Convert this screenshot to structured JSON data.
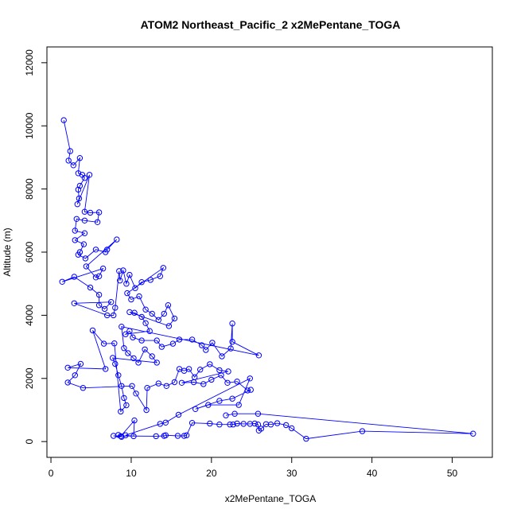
{
  "chart_data": {
    "type": "scatter",
    "title": "ATOM2 Northeast_Pacific_2 x2MePentane_TOGA",
    "xlabel": "x2MePentane_TOGA",
    "ylabel": "Altitude (m)",
    "xlim": [
      -0.5,
      55
    ],
    "ylim": [
      -500,
      12500
    ],
    "xticks": [
      0,
      10,
      20,
      30,
      40,
      50
    ],
    "yticks": [
      0,
      2000,
      4000,
      6000,
      8000,
      10000,
      12000
    ],
    "x_tick_labels": [
      "0",
      "10",
      "20",
      "30",
      "40",
      "50"
    ],
    "y_tick_labels": [
      "0",
      "2000",
      "4000",
      "6000",
      "8000",
      "10000",
      "12000"
    ],
    "grid": false,
    "legend": "none",
    "series": [
      {
        "color": "#0000ff",
        "marker": "open-circle",
        "connected": true,
        "points": [
          [
            1.6,
            10180
          ],
          [
            2.4,
            9200
          ],
          [
            2.2,
            8900
          ],
          [
            2.8,
            8750
          ],
          [
            3.6,
            8980
          ],
          [
            3.4,
            8500
          ],
          [
            3.9,
            8450
          ],
          [
            4.2,
            8350
          ],
          [
            3.6,
            8100
          ],
          [
            3.4,
            7980
          ],
          [
            3.5,
            7700
          ],
          [
            3.3,
            7520
          ],
          [
            4.8,
            8450
          ],
          [
            4.2,
            7280
          ],
          [
            4.9,
            7250
          ],
          [
            6.0,
            7260
          ],
          [
            5.8,
            6950
          ],
          [
            4.2,
            7000
          ],
          [
            3.2,
            7050
          ],
          [
            3.0,
            6680
          ],
          [
            4.2,
            6600
          ],
          [
            3.0,
            6380
          ],
          [
            4.1,
            6250
          ],
          [
            3.6,
            6000
          ],
          [
            3.4,
            5920
          ],
          [
            4.3,
            5800
          ],
          [
            5.6,
            6080
          ],
          [
            6.8,
            6000
          ],
          [
            7.0,
            6080
          ],
          [
            8.2,
            6400
          ],
          [
            4.4,
            5550
          ],
          [
            5.6,
            5200
          ],
          [
            6.0,
            5240
          ],
          [
            6.5,
            5480
          ],
          [
            1.4,
            5060
          ],
          [
            2.9,
            5220
          ],
          [
            4.9,
            4880
          ],
          [
            6.0,
            4650
          ],
          [
            6.0,
            4320
          ],
          [
            6.7,
            4200
          ],
          [
            7.5,
            4420
          ],
          [
            2.9,
            4380
          ],
          [
            7.0,
            4000
          ],
          [
            7.8,
            4000
          ],
          [
            8.0,
            4240
          ],
          [
            8.5,
            5400
          ],
          [
            8.6,
            5100
          ],
          [
            9.0,
            5420
          ],
          [
            9.4,
            5000
          ],
          [
            9.8,
            5280
          ],
          [
            10.5,
            4860
          ],
          [
            11.3,
            5050
          ],
          [
            12.4,
            5120
          ],
          [
            13.6,
            5240
          ],
          [
            14.0,
            5500
          ],
          [
            9.5,
            4700
          ],
          [
            10.0,
            4500
          ],
          [
            11.0,
            4600
          ],
          [
            11.8,
            4180
          ],
          [
            12.6,
            4050
          ],
          [
            13.4,
            3850
          ],
          [
            14.1,
            4050
          ],
          [
            14.6,
            4320
          ],
          [
            15.4,
            3900
          ],
          [
            14.7,
            3660
          ],
          [
            9.8,
            4100
          ],
          [
            10.4,
            4080
          ],
          [
            11.3,
            3950
          ],
          [
            11.8,
            3750
          ],
          [
            12.3,
            3500
          ],
          [
            9.3,
            3400
          ],
          [
            9.8,
            3500
          ],
          [
            10.2,
            3300
          ],
          [
            11.3,
            3200
          ],
          [
            13.2,
            3200
          ],
          [
            13.8,
            3000
          ],
          [
            15.2,
            3100
          ],
          [
            16.0,
            3230
          ],
          [
            17.6,
            3230
          ],
          [
            18.8,
            3050
          ],
          [
            19.3,
            2900
          ],
          [
            20.1,
            3130
          ],
          [
            21.3,
            2700
          ],
          [
            22.4,
            2950
          ],
          [
            22.6,
            3740
          ],
          [
            22.6,
            3160
          ],
          [
            25.9,
            2730
          ],
          [
            8.8,
            3640
          ],
          [
            9.1,
            2960
          ],
          [
            9.6,
            2800
          ],
          [
            10.3,
            2640
          ],
          [
            10.9,
            2500
          ],
          [
            11.7,
            2920
          ],
          [
            12.6,
            2700
          ],
          [
            13.2,
            2500
          ],
          [
            7.7,
            2650
          ],
          [
            8.0,
            2460
          ],
          [
            8.4,
            2100
          ],
          [
            8.8,
            1760
          ],
          [
            9.1,
            1380
          ],
          [
            9.4,
            1150
          ],
          [
            8.7,
            950
          ],
          [
            7.9,
            3110
          ],
          [
            6.6,
            3100
          ],
          [
            5.2,
            3520
          ],
          [
            6.8,
            2300
          ],
          [
            2.1,
            2340
          ],
          [
            3.7,
            2460
          ],
          [
            3.0,
            2100
          ],
          [
            2.1,
            1870
          ],
          [
            4.0,
            1700
          ],
          [
            10.1,
            1760
          ],
          [
            10.6,
            1520
          ],
          [
            11.9,
            1000
          ],
          [
            12.0,
            1700
          ],
          [
            13.4,
            1840
          ],
          [
            14.4,
            1760
          ],
          [
            15.4,
            1880
          ],
          [
            16.0,
            2300
          ],
          [
            16.6,
            2240
          ],
          [
            17.2,
            2300
          ],
          [
            17.9,
            2040
          ],
          [
            18.6,
            2280
          ],
          [
            19.8,
            2450
          ],
          [
            21.0,
            2260
          ],
          [
            22.1,
            2220
          ],
          [
            16.3,
            1860
          ],
          [
            17.8,
            1880
          ],
          [
            19.0,
            1820
          ],
          [
            20.0,
            1960
          ],
          [
            21.2,
            2100
          ],
          [
            22.0,
            1860
          ],
          [
            23.2,
            1900
          ],
          [
            24.5,
            1620
          ],
          [
            24.9,
            1640
          ],
          [
            22.6,
            1360
          ],
          [
            21.0,
            1290
          ],
          [
            18.0,
            1030
          ],
          [
            19.6,
            1160
          ],
          [
            23.4,
            1160
          ],
          [
            24.8,
            2000
          ],
          [
            15.9,
            850
          ],
          [
            14.3,
            600
          ],
          [
            13.6,
            560
          ],
          [
            9.3,
            200
          ],
          [
            10.3,
            170
          ],
          [
            10.4,
            670
          ],
          [
            8.7,
            170
          ],
          [
            8.4,
            210
          ],
          [
            8.8,
            150
          ],
          [
            7.8,
            180
          ],
          [
            13.1,
            170
          ],
          [
            14.1,
            180
          ],
          [
            14.3,
            200
          ],
          [
            15.8,
            180
          ],
          [
            16.6,
            180
          ],
          [
            16.9,
            200
          ],
          [
            17.6,
            590
          ],
          [
            19.8,
            570
          ],
          [
            21.0,
            540
          ],
          [
            22.3,
            540
          ],
          [
            22.7,
            540
          ],
          [
            23.2,
            570
          ],
          [
            24.0,
            560
          ],
          [
            24.8,
            560
          ],
          [
            25.4,
            570
          ],
          [
            25.8,
            540
          ],
          [
            25.9,
            350
          ],
          [
            26.2,
            410
          ],
          [
            26.8,
            550
          ],
          [
            27.4,
            540
          ],
          [
            28.2,
            580
          ],
          [
            29.3,
            520
          ],
          [
            30.0,
            420
          ],
          [
            31.8,
            90
          ],
          [
            38.8,
            330
          ],
          [
            52.6,
            250
          ],
          [
            25.8,
            880
          ],
          [
            22.9,
            880
          ],
          [
            21.8,
            830
          ]
        ]
      }
    ]
  }
}
